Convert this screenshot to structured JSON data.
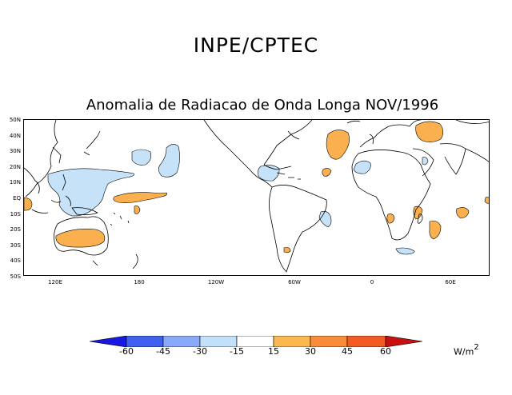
{
  "header": {
    "title": "INPE/CPTEC"
  },
  "map": {
    "title": "Anomalia de Radiacao de Onda Longa NOV/1996",
    "lat_labels": [
      "50N",
      "40N",
      "30N",
      "20N",
      "10N",
      "EQ",
      "10S",
      "20S",
      "30S",
      "40S",
      "50S"
    ],
    "lon_labels": [
      "120E",
      "180",
      "120W",
      "60W",
      "0",
      "60E"
    ]
  },
  "colorbar": {
    "ticks": [
      "-60",
      "-45",
      "-30",
      "-15",
      "15",
      "30",
      "45",
      "60"
    ],
    "colors": [
      "#1818e0",
      "#4060f0",
      "#8aa8f8",
      "#c2e0f8",
      "#ffffff",
      "#fbb850",
      "#f98c3a",
      "#f25c24",
      "#c81010"
    ],
    "units": "W/m",
    "units_exponent": "2"
  },
  "colors": {
    "positive_anomaly": "#fbb050",
    "negative_anomaly": "#c6e2f9"
  }
}
